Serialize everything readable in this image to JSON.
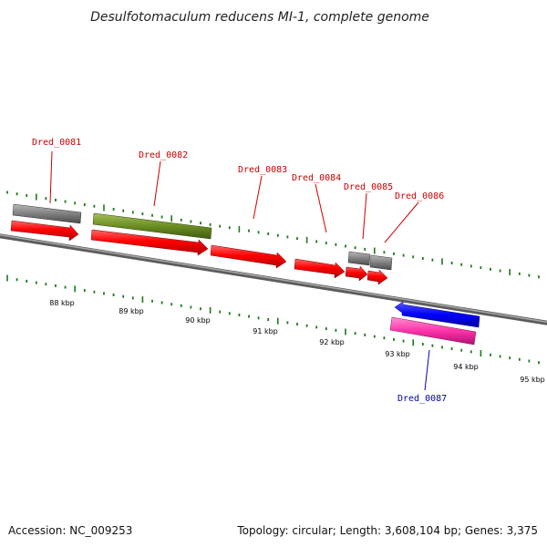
{
  "title": "Desulfotomaculum reducens MI-1, complete genome",
  "footer": {
    "accession": "Accession: NC_009253",
    "topology": "Topology: circular; Length: 3,608,104 bp; Genes: 3,375"
  },
  "colors": {
    "backbone": "#808080",
    "tick": "#1a7a1a",
    "label_red": "#cc0000",
    "label_blue": "#0000aa"
  },
  "gene_labels": [
    {
      "name": "Dred_0081",
      "color": "#cc0000"
    },
    {
      "name": "Dred_0082",
      "color": "#cc0000"
    },
    {
      "name": "Dred_0083",
      "color": "#cc0000"
    },
    {
      "name": "Dred_0084",
      "color": "#cc0000"
    },
    {
      "name": "Dred_0085",
      "color": "#cc0000"
    },
    {
      "name": "Dred_0086",
      "color": "#cc0000"
    },
    {
      "name": "Dred_0087",
      "color": "#0000aa"
    }
  ],
  "scale_labels": [
    "88 kbp",
    "89 kbp",
    "90 kbp",
    "91 kbp",
    "92 kbp",
    "93 kbp",
    "94 kbp",
    "95 kbp"
  ]
}
